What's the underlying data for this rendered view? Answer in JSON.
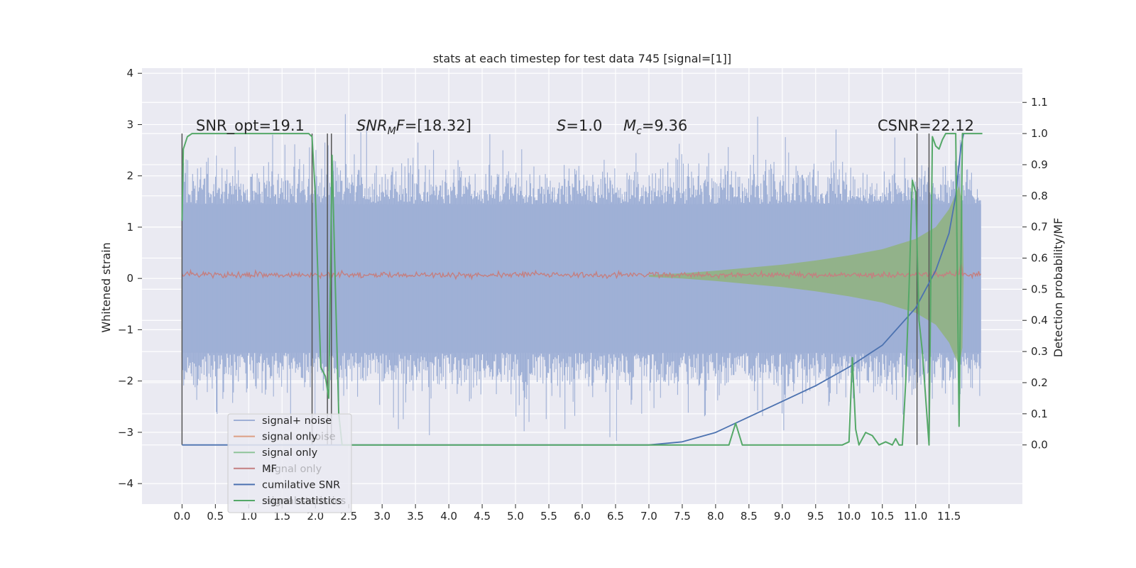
{
  "chart_data": {
    "type": "line",
    "title": "stats at each timestep for test data 745 [signal=[1]]",
    "xlabel": "",
    "ylabel": "Whitened strain",
    "ylabel_right": "Detection probability/MF",
    "xlim": [
      -0.6,
      12.6
    ],
    "ylim": [
      -4.4,
      4.1
    ],
    "ylim_right": [
      -0.19,
      1.21
    ],
    "x_ticks": [
      "0.0",
      "0.5",
      "1.0",
      "1.5",
      "2.0",
      "2.5",
      "3.0",
      "3.5",
      "4.0",
      "4.5",
      "5.0",
      "5.5",
      "6.0",
      "6.5",
      "7.0",
      "7.5",
      "8.0",
      "8.5",
      "9.0",
      "9.5",
      "10.0",
      "10.5",
      "11.0",
      "11.5"
    ],
    "y_ticks": [
      "4",
      "3",
      "2",
      "1",
      "0",
      "−1",
      "−2",
      "−3",
      "−4"
    ],
    "y_ticks_right": [
      "1.1",
      "1.0",
      "0.9",
      "0.8",
      "0.7",
      "0.6",
      "0.5",
      "0.4",
      "0.3",
      "0.2",
      "0.1",
      "0.0"
    ],
    "grid": true,
    "annotations": [
      "SNR_opt=19.1",
      "SNR",
      "M",
      "F=[18.32]",
      "S",
      "=1.0",
      "M",
      "c",
      "=9.36",
      "CSNR=22.12"
    ],
    "vertical_markers_x": [
      0.0,
      1.95,
      2.18,
      2.24,
      11.02,
      11.2
    ],
    "legend_location": "lower-left",
    "legend_note": "two overlapping legends; text of the partially hidden one remains faintly visible",
    "legend": [
      {
        "label": "signal+ noise",
        "color": "#9fb0d6"
      },
      {
        "label": "signal only",
        "color": "#dd9f84"
      },
      {
        "label": "signal only",
        "color": "#8fc49a"
      },
      {
        "label": "MF",
        "color": "#c47f80"
      },
      {
        "label": "cumilative SNR",
        "color": "#4c72b0"
      },
      {
        "label": "signal statistics",
        "color": "#55a868"
      }
    ],
    "legend_hidden_fragments": [
      "noise",
      "signal only",
      "signal statistics"
    ],
    "series": [
      {
        "name": "signal+ noise",
        "axis": "left",
        "style": "noise-band",
        "x_range": [
          0.0,
          11.98
        ],
        "core_amplitude": 1.45,
        "peak_amplitude": 3.7,
        "color": "#9fb0d6"
      },
      {
        "name": "signal only",
        "axis": "left",
        "style": "chirp-envelope",
        "color": "#8fb37d",
        "x": [
          7.0,
          7.5,
          8.0,
          8.5,
          9.0,
          9.5,
          10.0,
          10.5,
          11.0,
          11.3,
          11.5,
          11.6,
          11.65,
          11.7,
          11.72
        ],
        "envelope": [
          0.02,
          0.05,
          0.1,
          0.16,
          0.22,
          0.3,
          0.4,
          0.52,
          0.72,
          0.95,
          1.3,
          1.6,
          1.75,
          1.4,
          0.0
        ]
      },
      {
        "name": "MF",
        "axis": "left",
        "style": "thin-noise",
        "color": "#c47f80",
        "x_range": [
          0.0,
          11.98
        ],
        "center": 0.07,
        "amplitude": 0.07,
        "spike": {
          "x": 11.68,
          "y": 0.3
        }
      },
      {
        "name": "cumilative SNR",
        "axis": "right",
        "color": "#4c72b0",
        "x": [
          0.0,
          7.0,
          7.5,
          8.0,
          8.5,
          9.0,
          9.5,
          10.0,
          10.5,
          11.0,
          11.3,
          11.5,
          11.6,
          11.68,
          11.72
        ],
        "y": [
          0.0,
          0.0,
          0.01,
          0.04,
          0.09,
          0.14,
          0.19,
          0.25,
          0.32,
          0.44,
          0.56,
          0.68,
          0.8,
          0.96,
          1.0
        ]
      },
      {
        "name": "signal statistics",
        "axis": "right",
        "color": "#55a868",
        "x": [
          0.0,
          0.02,
          0.08,
          0.15,
          0.5,
          1.0,
          1.5,
          1.9,
          1.95,
          2.0,
          2.08,
          2.15,
          2.2,
          2.25,
          2.3,
          2.35,
          2.4,
          2.6,
          3.0,
          5.0,
          7.0,
          8.0,
          8.2,
          8.3,
          8.4,
          8.7,
          9.5,
          9.9,
          10.0,
          10.05,
          10.1,
          10.15,
          10.25,
          10.35,
          10.45,
          10.55,
          10.65,
          10.7,
          10.75,
          10.8,
          10.85,
          10.9,
          10.95,
          11.0,
          11.05,
          11.1,
          11.15,
          11.2,
          11.25,
          11.3,
          11.35,
          11.4,
          11.45,
          11.5,
          11.55,
          11.6,
          11.65,
          11.7,
          11.8,
          12.0
        ],
        "y": [
          0.72,
          0.95,
          0.99,
          1.0,
          1.0,
          1.0,
          1.0,
          1.0,
          0.99,
          0.8,
          0.25,
          0.22,
          0.15,
          0.93,
          0.5,
          0.1,
          0.0,
          0.0,
          0.0,
          0.0,
          0.0,
          0.0,
          0.0,
          0.07,
          0.0,
          0.0,
          0.0,
          0.0,
          0.01,
          0.28,
          0.05,
          0.0,
          0.04,
          0.03,
          0.0,
          0.01,
          0.0,
          0.02,
          0.0,
          0.0,
          0.2,
          0.5,
          0.85,
          0.81,
          0.4,
          0.3,
          0.15,
          0.0,
          0.99,
          0.96,
          0.95,
          0.98,
          1.0,
          1.0,
          1.0,
          1.0,
          0.06,
          1.0,
          1.0,
          1.0
        ]
      }
    ],
    "colors": {
      "panel_bg": "#eaeaf2",
      "grid": "#ffffff",
      "text": "#262626",
      "marker": "#555555"
    }
  }
}
